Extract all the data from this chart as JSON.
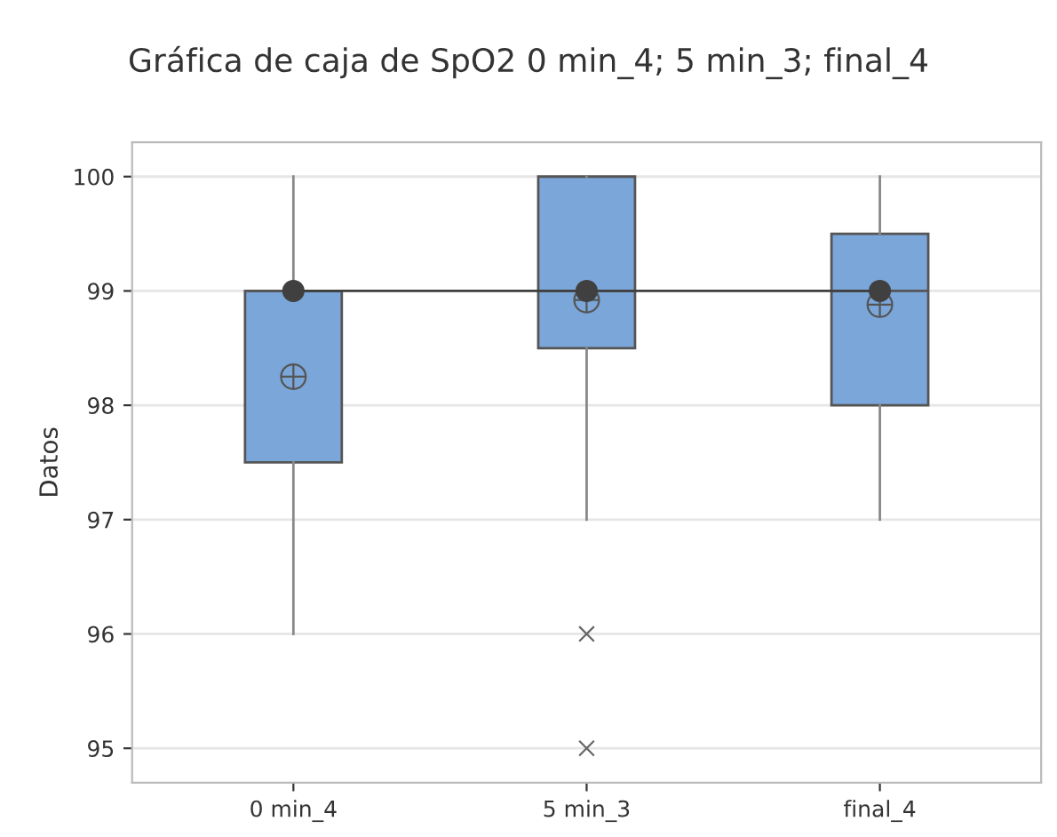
{
  "chart_data": {
    "type": "box",
    "title": "Gráfica de caja de SpO2 0 min_4; 5 min_3; final_4",
    "ylabel": "Datos",
    "categories": [
      "0 min_4",
      "5 min_3",
      "final_4"
    ],
    "boxes": [
      {
        "low": 96,
        "q1": 97.5,
        "median": 99,
        "q3": 99,
        "high": 100,
        "mean": 98.25
      },
      {
        "low": 97,
        "q1": 98.5,
        "median": 99,
        "q3": 100,
        "high": 100,
        "mean": 98.92,
        "outliers": [
          96,
          95
        ]
      },
      {
        "low": 97,
        "q1": 98,
        "median": 99,
        "q3": 99.5,
        "high": 100,
        "mean": 98.88
      }
    ],
    "color": "#7ba6d9",
    "series": [
      {
        "type": "line",
        "color": "#404040",
        "values": [
          99,
          99,
          99
        ],
        "marker": "circle"
      }
    ],
    "ylim": [
      94.7,
      100.3
    ],
    "yticks": [
      95,
      96,
      97,
      98,
      99,
      100
    ],
    "grid": "y",
    "legend": false
  }
}
